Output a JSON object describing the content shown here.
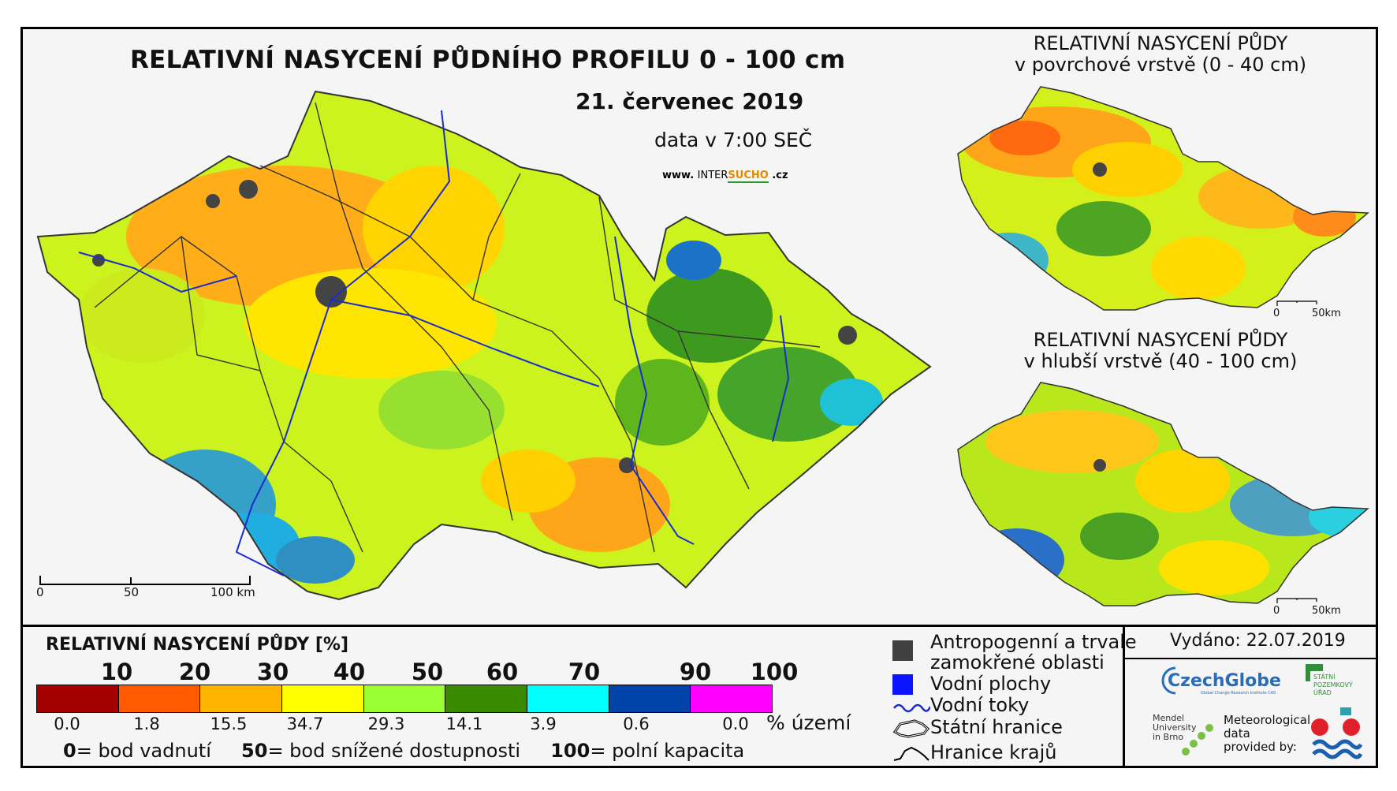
{
  "main_title": "RELATIVNÍ NASYCENÍ PŮDNÍHO PROFILU 0 - 100 cm",
  "date": "21. červenec 2019",
  "data_time": "data v 7:00 SEČ",
  "website": {
    "prefix": "www.",
    "inter": "INTER",
    "sucho": "SUCHO",
    "suffix": ".cz"
  },
  "inset_top": {
    "title_line1": "RELATIVNÍ NASYCENÍ PŮDY",
    "title_line2": "v povrchové vrstvě (0 - 40 cm)",
    "scale_zero": "0",
    "scale_end": "50km"
  },
  "inset_bottom": {
    "title_line1": "RELATIVNÍ NASYCENÍ PŮDY",
    "title_line2": "v hlubší vrstvě (40 - 100 cm)",
    "scale_zero": "0",
    "scale_end": "50km"
  },
  "main_scale": {
    "labels": [
      "0",
      "50",
      "100 km"
    ]
  },
  "legend": {
    "title": "RELATIVNÍ NASYCENÍ PŮDY [%]",
    "ticks": [
      "10",
      "20",
      "30",
      "40",
      "50",
      "60",
      "70",
      "90",
      "100"
    ],
    "colors": [
      "#a50000",
      "#ff5a00",
      "#ffb400",
      "#ffff00",
      "#99ff33",
      "#3a8a00",
      "#00ffff",
      "#0044aa",
      "#ff00ff"
    ],
    "area_percent": [
      "0.0",
      "1.8",
      "15.5",
      "34.7",
      "29.3",
      "14.1",
      "3.9",
      "0.6",
      "0.0"
    ],
    "area_unit": "% území",
    "footnote": {
      "v0": "0",
      "t0": "= bod vadnutí",
      "v50": "50",
      "t50": "= bod snížené dostupnosti",
      "v100": "100",
      "t100": "= polní kapacita"
    }
  },
  "symbols": {
    "anthropogenic_line1": "Antropogenní a trvale",
    "anthropogenic_line2": "zamokřené oblasti",
    "water_bodies": "Vodní plochy",
    "rivers": "Vodní toky",
    "state_border": "Státní hranice",
    "region_border": "Hranice krajů"
  },
  "issued": "Vydáno: 22.07.2019",
  "logos": {
    "czechglobe": "CzechGlobe",
    "czechglobe_sub": "Global Change Research Institute CAS",
    "spu_line1": "STÁTNÍ",
    "spu_line2": "POZEMKOVÝ",
    "spu_line3": "ÚŘAD",
    "mendel_line1": "Mendel",
    "mendel_line2": "University",
    "mendel_line3": "in Brno",
    "met_line1": "Meteorological",
    "met_line2": "data",
    "met_line3": "provided by:"
  }
}
